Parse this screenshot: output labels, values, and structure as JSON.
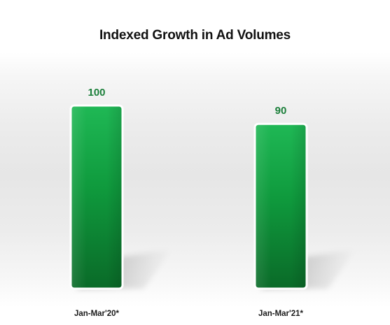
{
  "chart_data": {
    "type": "bar",
    "title": "Indexed Growth in Ad Volumes",
    "categories": [
      "Jan-Mar'20*",
      "Jan-Mar'21*"
    ],
    "values": [
      100,
      90
    ],
    "data_labels": [
      "100",
      "90"
    ],
    "xlabel": "",
    "ylabel": "",
    "grid": false,
    "legend": "none",
    "colors": {
      "bar_top": "#1fb855",
      "bar_mid": "#0f9a3d",
      "bar_bottom": "#0a6a28",
      "bar_border": "#ffffff",
      "data_label": "#1b7f3a",
      "tick_label": "#1a1a1a",
      "title": "#111111"
    }
  }
}
